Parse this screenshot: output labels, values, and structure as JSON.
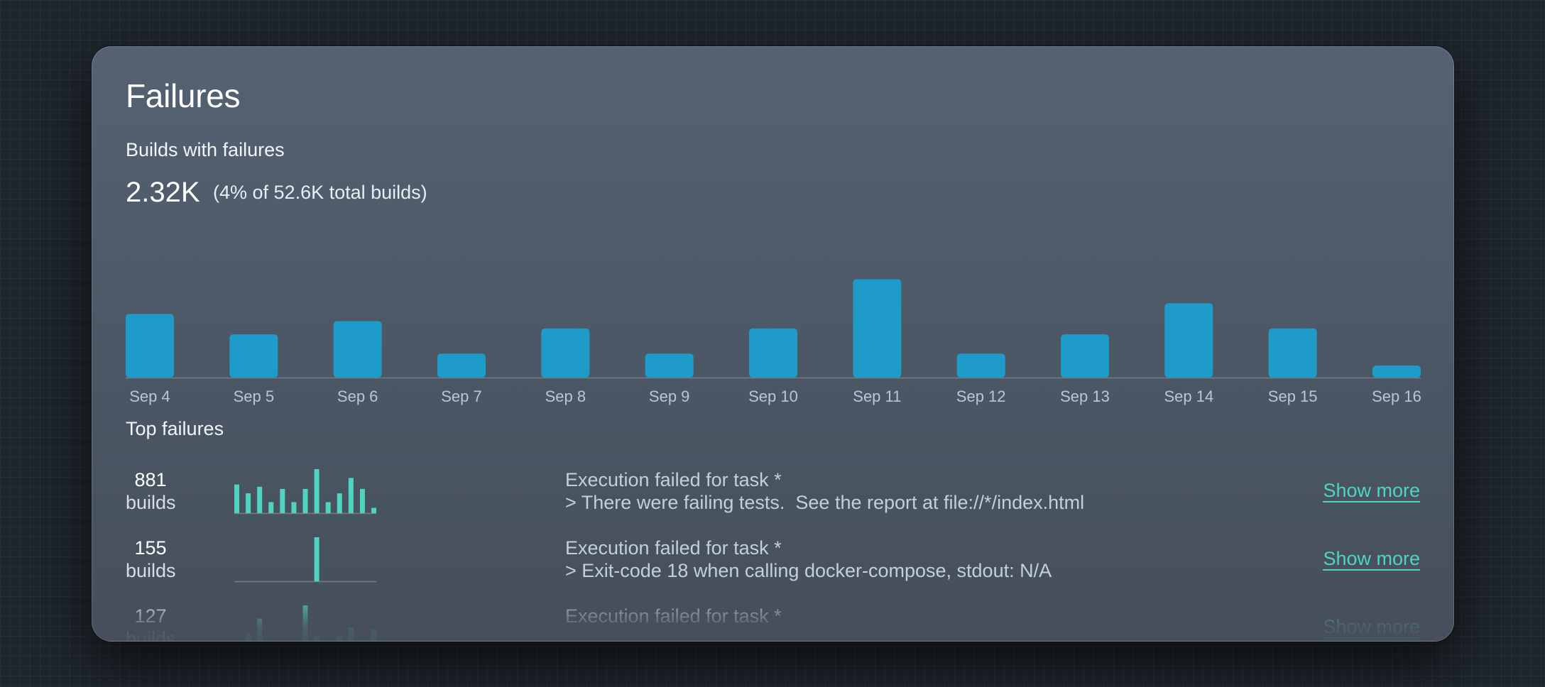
{
  "card": {
    "title": "Failures",
    "builds_with_failures_label": "Builds with failures",
    "failure_count": "2.32K",
    "failure_pct_text": "(4% of 52.6K total builds)"
  },
  "colors": {
    "bar": "#1e9bc8",
    "spark": "#4ed4c0",
    "link": "#4ed4c0"
  },
  "chart_data": {
    "type": "bar",
    "categories": [
      "Sep 4",
      "Sep 5",
      "Sep 6",
      "Sep 7",
      "Sep 8",
      "Sep 9",
      "Sep 10",
      "Sep 11",
      "Sep 12",
      "Sep 13",
      "Sep 14",
      "Sep 15",
      "Sep 16"
    ],
    "values": [
      265,
      180,
      235,
      100,
      205,
      100,
      205,
      410,
      100,
      180,
      310,
      205,
      50
    ],
    "ylim": [
      0,
      420
    ],
    "grid": false
  },
  "top_failures": {
    "title": "Top failures",
    "show_more_label": "Show more",
    "rows": [
      {
        "count": "881",
        "unit": "builds",
        "line1": "Execution failed for task *",
        "line2": "> There were failing tests.  See the report at file://*/index.html",
        "spark": [
          0.65,
          0.45,
          0.6,
          0.25,
          0.55,
          0.25,
          0.55,
          1.0,
          0.25,
          0.45,
          0.8,
          0.55,
          0.12
        ]
      },
      {
        "count": "155",
        "unit": "builds",
        "line1": "Execution failed for task *",
        "line2": "> Exit-code 18 when calling docker-compose, stdout: N/A",
        "spark": [
          0,
          0,
          0,
          0,
          0,
          0,
          0,
          1.0,
          0,
          0,
          0,
          0,
          0
        ]
      },
      {
        "count": "127",
        "unit": "builds",
        "line1": "Execution failed for task *",
        "line2": "",
        "spark": [
          0,
          0.35,
          0.7,
          0.15,
          0,
          0,
          1.0,
          0.3,
          0,
          0.3,
          0.5,
          0.2,
          0.45
        ]
      }
    ]
  }
}
